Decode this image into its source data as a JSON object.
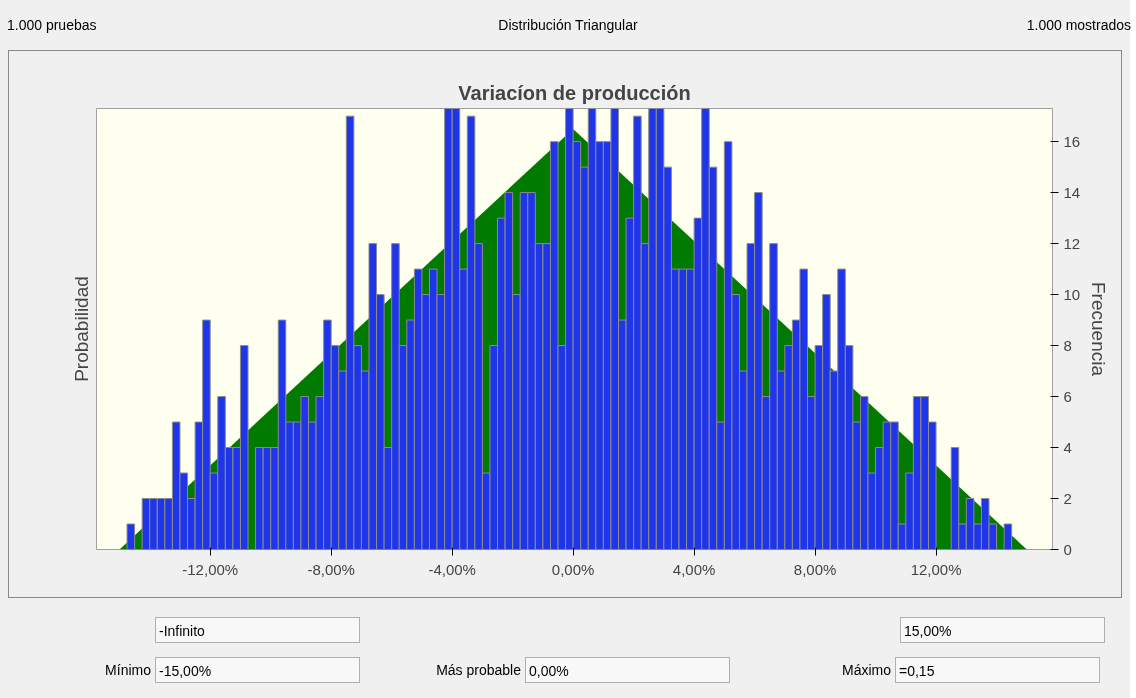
{
  "chart_data": {
    "type": "histogram",
    "title": "Variacíon de producción",
    "ylabel": "Probabilidad",
    "y2label": "Frecuencia",
    "bins": [
      -15,
      -14.75,
      -14.5,
      -14.25,
      -14,
      -13.75,
      -13.5,
      -13.25,
      -13,
      -12.75,
      -12.5,
      -12.25,
      -12,
      -11.75,
      -11.5,
      -11.25,
      -11,
      -10.75,
      -10.5,
      -10.25,
      -10,
      -9.75,
      -9.5,
      -9.25,
      -9,
      -8.75,
      -8.5,
      -8.25,
      -8,
      -7.75,
      -7.5,
      -7.25,
      -7,
      -6.75,
      -6.5,
      -6.25,
      -6,
      -5.75,
      -5.5,
      -5.25,
      -5,
      -4.75,
      -4.5,
      -4.25,
      -4,
      -3.75,
      -3.5,
      -3.25,
      -3,
      -2.75,
      -2.5,
      -2.25,
      -2,
      -1.75,
      -1.5,
      -1.25,
      -1,
      -0.75,
      -0.5,
      -0.25,
      0,
      0.25,
      0.5,
      0.75,
      1,
      1.25,
      1.5,
      1.75,
      2,
      2.25,
      2.5,
      2.75,
      3,
      3.25,
      3.5,
      3.75,
      4,
      4.25,
      4.5,
      4.75,
      5,
      5.25,
      5.5,
      5.75,
      6,
      6.25,
      6.5,
      6.75,
      7,
      7.25,
      7.5,
      7.75,
      8,
      8.25,
      8.5,
      8.75,
      9,
      9.25,
      9.5,
      9.75,
      10,
      10.25,
      10.5,
      10.75,
      11,
      11.25,
      11.5,
      11.75,
      12,
      12.25,
      12.5,
      12.75,
      13,
      13.25,
      13.5,
      13.75,
      14,
      14.25,
      14.5,
      14.75,
      15
    ],
    "series": [
      {
        "type": "area",
        "x": [
          -15,
          0,
          15
        ],
        "values": [
          0,
          16.5,
          0
        ],
        "color": "#007a00",
        "axis": "y2"
      },
      {
        "color": "#1f35ea",
        "axis": "y2",
        "values": [
          0,
          1,
          0,
          2,
          2,
          2,
          2,
          5,
          3,
          2,
          5,
          9,
          3,
          6,
          4,
          4,
          8,
          0,
          4,
          4,
          4,
          9,
          5,
          5,
          6,
          5,
          6,
          9,
          8,
          7,
          17,
          8,
          7,
          12,
          10,
          4,
          12,
          8,
          9,
          11,
          10,
          11,
          10,
          17.3,
          17.3,
          11,
          17,
          12,
          3,
          8,
          13,
          14,
          10,
          14,
          14,
          12,
          12,
          16,
          8,
          17.3,
          16,
          15,
          17.3,
          16,
          16,
          17.3,
          9,
          13,
          17,
          12,
          17.3,
          17.3,
          15,
          11,
          11,
          11,
          13,
          17.3,
          15,
          5,
          16,
          10,
          7,
          12,
          14,
          6,
          12,
          7,
          8,
          9,
          11,
          6,
          8,
          10,
          7,
          11,
          8,
          5,
          6,
          3,
          4,
          5,
          5,
          1,
          3,
          6,
          6,
          5,
          0,
          0,
          4,
          1,
          2,
          1,
          2,
          1,
          0,
          1,
          0,
          0
        ]
      }
    ],
    "xlim": [
      -15.76,
      15.85
    ],
    "xticks": [
      {
        "value": -12,
        "label": "-12,00%"
      },
      {
        "value": -8,
        "label": "-8,00%"
      },
      {
        "value": -4,
        "label": "-4,00%"
      },
      {
        "value": 0,
        "label": "0,00%"
      },
      {
        "value": 4,
        "label": "4,00%"
      },
      {
        "value": 8,
        "label": "8,00%"
      },
      {
        "value": 12,
        "label": "12,00%"
      }
    ],
    "y2lim": [
      0,
      17.3
    ],
    "y2ticks": [
      0,
      2,
      4,
      6,
      8,
      10,
      12,
      14,
      16
    ],
    "annotations": [
      "1.000 pruebas",
      "Distribución Triangular",
      "1.000 mostrados",
      "-Infinito",
      "15,00%",
      "Mínimo",
      "-15,00%",
      "Más probable",
      "0,00%",
      "Máximo",
      "=0,15"
    ]
  }
}
